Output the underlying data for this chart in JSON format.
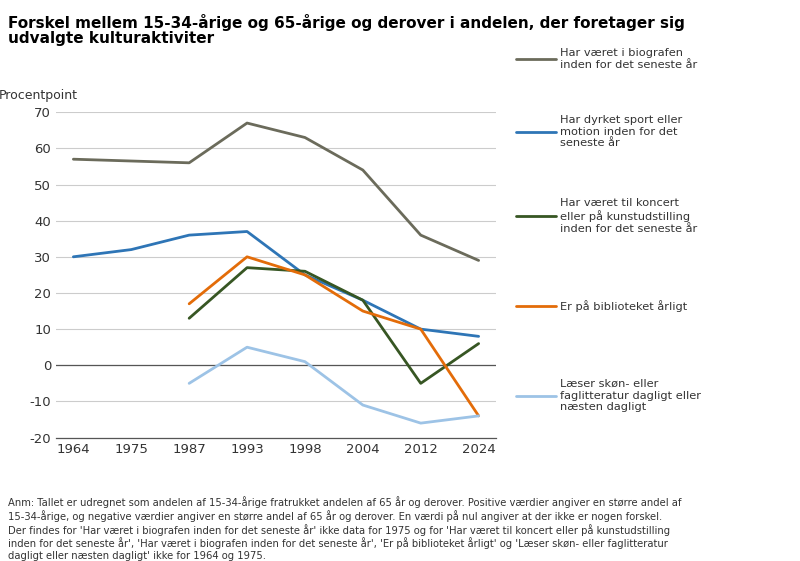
{
  "title_line1": "Forskel mellem 15-34-årige og 65-årige og derover i andelen, der foretager sig",
  "title_line2": "udvalgte kulturaktiviter",
  "ylabel": "Procentpoint",
  "series": [
    {
      "label": "Har været i biografen\ninden for det seneste år",
      "color": "#6b6b5b",
      "years": [
        1964,
        1987,
        1993,
        1998,
        2004,
        2012,
        2024
      ],
      "values": [
        57,
        56,
        67,
        63,
        54,
        36,
        29
      ]
    },
    {
      "label": "Har dyrket sport eller\nmotion inden for det\nseneste år",
      "color": "#2e75b6",
      "years": [
        1964,
        1975,
        1987,
        1993,
        1998,
        2004,
        2012,
        2024
      ],
      "values": [
        30,
        32,
        36,
        37,
        25,
        18,
        10,
        8
      ]
    },
    {
      "label": "Har været til koncert\neller på kunstudstilling\ninden for det seneste år",
      "color": "#375623",
      "years": [
        1987,
        1993,
        1998,
        2004,
        2012,
        2024
      ],
      "values": [
        13,
        27,
        26,
        18,
        -5,
        6
      ]
    },
    {
      "label": "Er på biblioteket årligt",
      "color": "#e36c09",
      "years": [
        1987,
        1993,
        1998,
        2004,
        2012,
        2024
      ],
      "values": [
        17,
        30,
        25,
        15,
        10,
        -14
      ]
    },
    {
      "label": "Læser skøn- eller\nfaglitteratur dagligt eller\nnæsten dagligt",
      "color": "#9dc3e6",
      "years": [
        1987,
        1993,
        1998,
        2004,
        2012,
        2024
      ],
      "values": [
        -5,
        5,
        1,
        -11,
        -16,
        -14
      ]
    }
  ],
  "ylim": [
    -20,
    70
  ],
  "yticks": [
    -20,
    -10,
    0,
    10,
    20,
    30,
    40,
    50,
    60,
    70
  ],
  "xtick_labels": [
    "1964",
    "1975",
    "1987",
    "1993",
    "1998",
    "2004",
    "2012",
    "2024"
  ],
  "annotation": "Anm: Tallet er udregnet som andelen af 15-34-årige fratrukket andelen af 65 år og derover. Positive værdier angiver en større andel af\n15-34-årige, og negative værdier angiver en større andel af 65 år og derover. En værdi på nul angiver at der ikke er nogen forskel.\nDer findes for 'Har været i biografen inden for det seneste år' ikke data for 1975 og for 'Har været til koncert eller på kunstudstilling\ninden for det seneste år', 'Har været i biografen inden for det seneste år', 'Er på biblioteket årligt' og 'Læser skøn- eller faglitteratur\ndagligt eller næsten dagligt' ikke for 1964 og 1975.",
  "background_color": "#ffffff"
}
